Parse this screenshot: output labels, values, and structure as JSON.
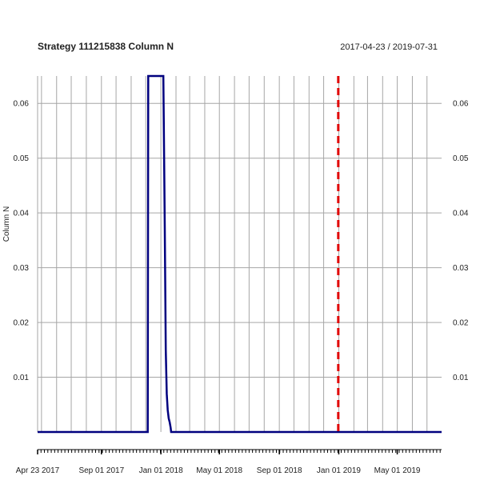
{
  "chart_data": {
    "type": "line",
    "title": "Strategy 111215838 Column N",
    "date_range": "2017-04-23 / 2019-07-31",
    "xlabel": "",
    "ylabel": "Column N",
    "xlim": [
      "2017-04-23",
      "2019-07-31"
    ],
    "ylim": [
      0,
      0.065
    ],
    "x_ticks": [
      {
        "date": "2017-04-23",
        "label": "Apr 23 2017"
      },
      {
        "date": "2017-09-01",
        "label": "Sep 01 2017"
      },
      {
        "date": "2018-01-01",
        "label": "Jan 01 2018"
      },
      {
        "date": "2018-05-01",
        "label": "May 01 2018"
      },
      {
        "date": "2018-09-01",
        "label": "Sep 01 2018"
      },
      {
        "date": "2019-01-01",
        "label": "Jan 01 2019"
      },
      {
        "date": "2019-05-01",
        "label": "May 01 2019"
      }
    ],
    "y_ticks": [
      0.01,
      0.02,
      0.03,
      0.04,
      0.05,
      0.06
    ],
    "grid": true,
    "vertical_grid_dates": [
      "2017-05-01",
      "2017-06-01",
      "2017-07-01",
      "2017-08-01",
      "2017-09-01",
      "2017-10-01",
      "2017-11-01",
      "2017-12-01",
      "2018-01-01",
      "2018-02-01",
      "2018-03-01",
      "2018-04-01",
      "2018-05-01",
      "2018-06-01",
      "2018-07-01",
      "2018-08-01",
      "2018-09-01",
      "2018-10-01",
      "2018-11-01",
      "2018-12-01",
      "2019-01-01",
      "2019-02-01",
      "2019-03-01",
      "2019-04-01",
      "2019-05-01",
      "2019-06-01",
      "2019-07-01"
    ],
    "series": [
      {
        "color": "#00007f",
        "points": [
          [
            "2017-04-23",
            0
          ],
          [
            "2017-12-05",
            0
          ],
          [
            "2017-12-06",
            0.065
          ],
          [
            "2018-01-06",
            0.065
          ],
          [
            "2018-01-07",
            0.056
          ],
          [
            "2018-01-09",
            0.037
          ],
          [
            "2018-01-11",
            0.015
          ],
          [
            "2018-01-13",
            0.007
          ],
          [
            "2018-01-15",
            0.004
          ],
          [
            "2018-01-17",
            0.0025
          ],
          [
            "2018-01-19",
            0.0018
          ],
          [
            "2018-01-21",
            0.0008
          ],
          [
            "2018-01-22",
            0
          ],
          [
            "2019-07-31",
            0
          ]
        ]
      }
    ],
    "marker_line": {
      "date": "2018-12-31",
      "color": "#e00000",
      "style": "dashed"
    }
  }
}
